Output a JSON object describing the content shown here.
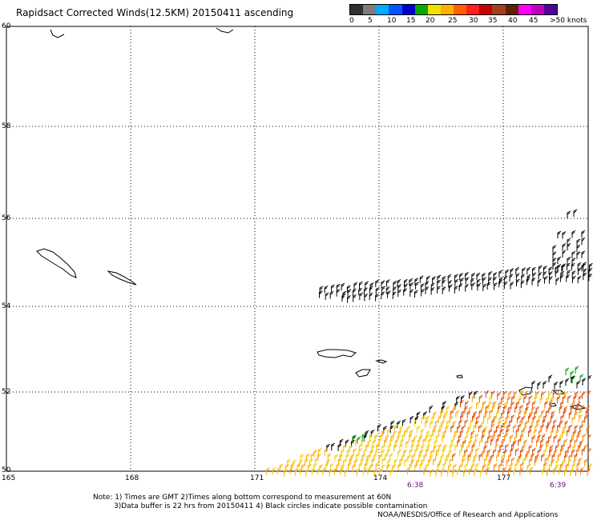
{
  "title": "Rapidsact Corrected Winds(12.5KM) 20150411 ascending",
  "colorbar": {
    "colors": [
      "#303030",
      "#7c7c7c",
      "#00aaff",
      "#0055ff",
      "#0000cc",
      "#00aa00",
      "#f0e000",
      "#ffb000",
      "#ff6000",
      "#ff2020",
      "#c80000",
      "#a04020",
      "#602000",
      "#ff00ff",
      "#c000c0",
      "#5000a0"
    ],
    "labels": [
      "0",
      "5",
      "10",
      "15",
      "20",
      "25",
      "30",
      "35",
      "40",
      "45",
      ">50 knots"
    ]
  },
  "lat_labels": [
    "60",
    "58",
    "56",
    "54",
    "52",
    "50"
  ],
  "lon_labels": [
    "165",
    "168",
    "171",
    "174",
    "177"
  ],
  "time_labels": [
    "6:38",
    "6:39"
  ],
  "notes": {
    "line1": "Note: 1) Times are GMT 2)Times along bottom correspond to measurement at 60N",
    "line2": "3)Data buffer is 22 hrs from 20150411 4) Black circles indicate possible contamination",
    "line3": "NOAA/NESDIS/Office of Research and Applications"
  }
}
